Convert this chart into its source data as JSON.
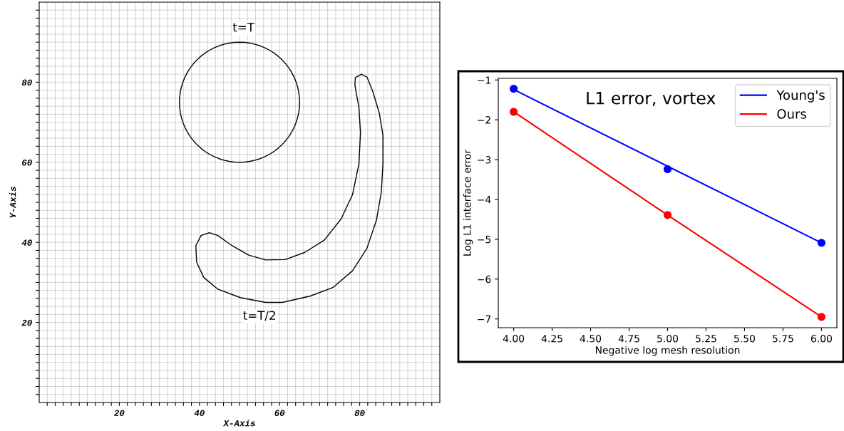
{
  "chart_data": [
    {
      "type": "line",
      "xlabel": "X-Axis",
      "ylabel": "Y-Axis",
      "xlim": [
        0,
        100
      ],
      "ylim": [
        0,
        100
      ],
      "xticks": [
        {
          "value": 2,
          "label": null
        },
        {
          "value": 4,
          "label": null
        },
        {
          "value": 6,
          "label": null
        },
        {
          "value": 8,
          "label": null
        },
        {
          "value": 10,
          "label": null
        },
        {
          "value": 12,
          "label": null
        },
        {
          "value": 14,
          "label": null
        },
        {
          "value": 16,
          "label": null
        },
        {
          "value": 18,
          "label": null
        },
        20,
        {
          "value": 22,
          "label": null
        },
        {
          "value": 24,
          "label": null
        },
        {
          "value": 26,
          "label": null
        },
        {
          "value": 28,
          "label": null
        },
        {
          "value": 30,
          "label": null
        },
        {
          "value": 32,
          "label": null
        },
        {
          "value": 34,
          "label": null
        },
        {
          "value": 36,
          "label": null
        },
        {
          "value": 38,
          "label": null
        },
        40,
        {
          "value": 42,
          "label": null
        },
        {
          "value": 44,
          "label": null
        },
        {
          "value": 46,
          "label": null
        },
        {
          "value": 48,
          "label": null
        },
        {
          "value": 50,
          "label": null
        },
        {
          "value": 52,
          "label": null
        },
        {
          "value": 54,
          "label": null
        },
        {
          "value": 56,
          "label": null
        },
        {
          "value": 58,
          "label": null
        },
        60,
        {
          "value": 62,
          "label": null
        },
        {
          "value": 64,
          "label": null
        },
        {
          "value": 66,
          "label": null
        },
        {
          "value": 68,
          "label": null
        },
        {
          "value": 70,
          "label": null
        },
        {
          "value": 72,
          "label": null
        },
        {
          "value": 74,
          "label": null
        },
        {
          "value": 76,
          "label": null
        },
        {
          "value": 78,
          "label": null
        },
        80,
        {
          "value": 82,
          "label": null
        },
        {
          "value": 84,
          "label": null
        },
        {
          "value": 86,
          "label": null
        },
        {
          "value": 88,
          "label": null
        },
        {
          "value": 90,
          "label": null
        },
        {
          "value": 92,
          "label": null
        },
        {
          "value": 94,
          "label": null
        },
        {
          "value": 96,
          "label": null
        },
        {
          "value": 98,
          "label": null
        }
      ],
      "yticks": [
        {
          "value": 2,
          "label": null
        },
        {
          "value": 4,
          "label": null
        },
        {
          "value": 6,
          "label": null
        },
        {
          "value": 8,
          "label": null
        },
        {
          "value": 10,
          "label": null
        },
        {
          "value": 12,
          "label": null
        },
        {
          "value": 14,
          "label": null
        },
        {
          "value": 16,
          "label": null
        },
        {
          "value": 18,
          "label": null
        },
        20,
        {
          "value": 22,
          "label": null
        },
        {
          "value": 24,
          "label": null
        },
        {
          "value": 26,
          "label": null
        },
        {
          "value": 28,
          "label": null
        },
        {
          "value": 30,
          "label": null
        },
        {
          "value": 32,
          "label": null
        },
        {
          "value": 34,
          "label": null
        },
        {
          "value": 36,
          "label": null
        },
        {
          "value": 38,
          "label": null
        },
        40,
        {
          "value": 42,
          "label": null
        },
        {
          "value": 44,
          "label": null
        },
        {
          "value": 46,
          "label": null
        },
        {
          "value": 48,
          "label": null
        },
        {
          "value": 50,
          "label": null
        },
        {
          "value": 52,
          "label": null
        },
        {
          "value": 54,
          "label": null
        },
        {
          "value": 56,
          "label": null
        },
        {
          "value": 58,
          "label": null
        },
        60,
        {
          "value": 62,
          "label": null
        },
        {
          "value": 64,
          "label": null
        },
        {
          "value": 66,
          "label": null
        },
        {
          "value": 68,
          "label": null
        },
        {
          "value": 70,
          "label": null
        },
        {
          "value": 72,
          "label": null
        },
        {
          "value": 74,
          "label": null
        },
        {
          "value": 76,
          "label": null
        },
        {
          "value": 78,
          "label": null
        },
        80,
        {
          "value": 82,
          "label": null
        },
        {
          "value": 84,
          "label": null
        },
        {
          "value": 86,
          "label": null
        },
        {
          "value": 88,
          "label": null
        },
        {
          "value": 90,
          "label": null
        },
        {
          "value": 92,
          "label": null
        },
        {
          "value": 94,
          "label": null
        },
        {
          "value": 96,
          "label": null
        },
        {
          "value": 98,
          "label": null
        }
      ],
      "grid": true,
      "annotations": [
        "t=T",
        "t=T/2"
      ]
    },
    {
      "type": "scatter",
      "title": "L1 error, vortex",
      "xlabel": "Negative log mesh resolution",
      "ylabel": "Log L1 interface error",
      "xlim": [
        3.9,
        6.1
      ],
      "ylim": [
        -7.22,
        -0.96
      ],
      "xticks": [
        {
          "value": 4,
          "label": "4.00"
        },
        {
          "value": 4.25,
          "label": "4.25"
        },
        {
          "value": 4.5,
          "label": "4.50"
        },
        {
          "value": 4.75,
          "label": "4.75"
        },
        {
          "value": 5,
          "label": "5.00"
        },
        {
          "value": 5.25,
          "label": "5.25"
        },
        {
          "value": 5.5,
          "label": "5.50"
        },
        {
          "value": 5.75,
          "label": "5.75"
        },
        {
          "value": 6,
          "label": "6.00"
        }
      ],
      "yticks": [
        {
          "value": -7,
          "label": "−7"
        },
        {
          "value": -6,
          "label": "−6"
        },
        {
          "value": -5,
          "label": "−5"
        },
        {
          "value": -4,
          "label": "−4"
        },
        {
          "value": -3,
          "label": "−3"
        },
        {
          "value": -2,
          "label": "−2"
        },
        {
          "value": -1,
          "label": "−1"
        }
      ],
      "marker": "circle",
      "legend": "top right",
      "series": [
        {
          "name": "Young's",
          "type": "line",
          "marker": "none",
          "color": "#0000ff",
          "x": [
            4,
            6
          ],
          "values": [
            -1.24,
            -5.09
          ]
        },
        {
          "name": "Ours",
          "type": "line",
          "marker": "none",
          "color": "#ff0000",
          "x": [
            4,
            5,
            6
          ],
          "values": [
            -1.8,
            -4.39,
            -6.95
          ]
        },
        {
          "color": "#0000ff",
          "x": [
            4,
            5,
            6
          ],
          "values": [
            -1.22,
            -3.24,
            -5.09
          ]
        },
        {
          "color": "#ff0000",
          "x": [
            4,
            5,
            6
          ],
          "values": [
            -1.8,
            -4.39,
            -6.95
          ]
        }
      ]
    }
  ]
}
